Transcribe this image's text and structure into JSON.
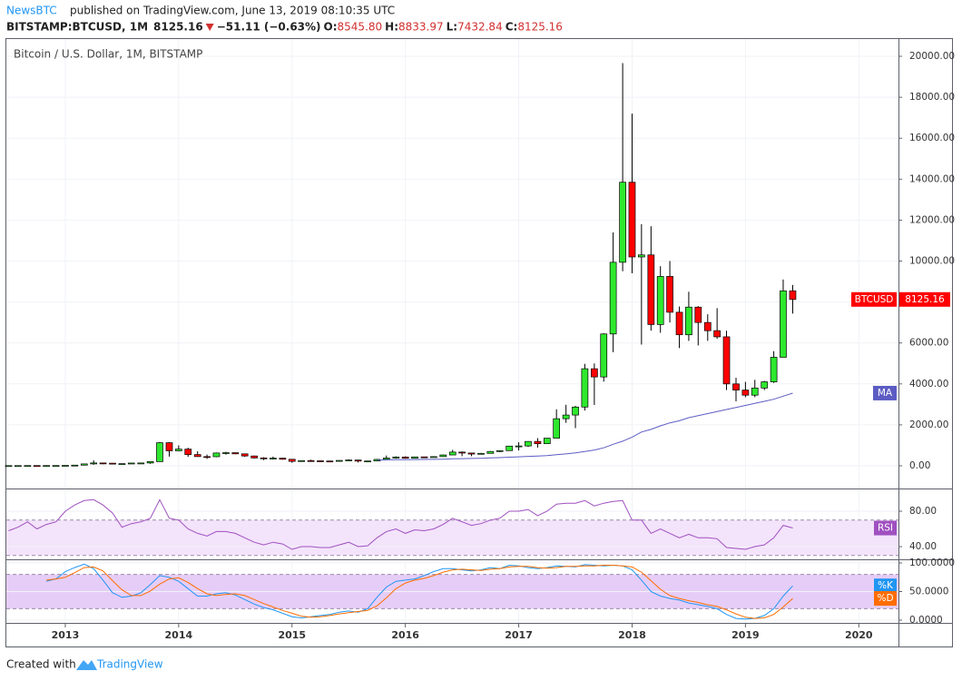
{
  "header": {
    "publisher": "NewsBTC",
    "published": "published on TradingView.com, June 13, 2019 08:10:35 UTC",
    "symbol": "BITSTAMP:BTCUSD, 1M",
    "last": "8125.16",
    "change": "−51.11 (−0.63%)",
    "ohlc": [
      {
        "label": "O:",
        "value": "8545.80"
      },
      {
        "label": "H:",
        "value": "8833.97"
      },
      {
        "label": "L:",
        "value": "7432.84"
      },
      {
        "label": "C:",
        "value": "8125.16"
      }
    ]
  },
  "footer": {
    "created": "Created with",
    "brand": "TradingView"
  },
  "chart_data": [
    {
      "type": "candlestick",
      "title": "Bitcoin / U.S. Dollar, 1M, BITSTAMP",
      "price_label": "BTCUSD",
      "up_color": "#2ee82e",
      "down_color": "#ff0000",
      "grid": true,
      "xlim": [
        2012.48,
        2020.35
      ],
      "xticks": [
        2013,
        2014,
        2015,
        2016,
        2017,
        2018,
        2019,
        2020
      ],
      "ylim": [
        -1064,
        20843
      ],
      "yticks": [
        {
          "value": 0,
          "label": "0.00"
        },
        {
          "value": 2000,
          "label": "2000.00"
        },
        {
          "value": 4000,
          "label": "4000.00"
        },
        {
          "value": 6000,
          "label": "6000.00"
        },
        {
          "value": 8000,
          "label": "8000.00"
        },
        {
          "value": 10000,
          "label": "10000.00"
        },
        {
          "value": 12000,
          "label": "12000.00"
        },
        {
          "value": 14000,
          "label": "14000.00"
        },
        {
          "value": 16000,
          "label": "16000.00"
        },
        {
          "value": 18000,
          "label": "18000.00"
        },
        {
          "value": 20000,
          "label": "20000.00"
        }
      ],
      "x": [
        2012.5,
        2012.583,
        2012.667,
        2012.75,
        2012.833,
        2012.917,
        2013,
        2013.083,
        2013.167,
        2013.25,
        2013.333,
        2013.417,
        2013.5,
        2013.583,
        2013.667,
        2013.75,
        2013.833,
        2013.917,
        2014,
        2014.083,
        2014.167,
        2014.25,
        2014.333,
        2014.417,
        2014.5,
        2014.583,
        2014.667,
        2014.75,
        2014.833,
        2014.917,
        2015,
        2015.083,
        2015.167,
        2015.25,
        2015.333,
        2015.417,
        2015.5,
        2015.583,
        2015.667,
        2015.75,
        2015.833,
        2015.917,
        2016,
        2016.083,
        2016.167,
        2016.25,
        2016.333,
        2016.417,
        2016.5,
        2016.583,
        2016.667,
        2016.75,
        2016.833,
        2016.917,
        2017,
        2017.083,
        2017.167,
        2017.25,
        2017.333,
        2017.417,
        2017.5,
        2017.583,
        2017.667,
        2017.75,
        2017.833,
        2017.917,
        2018,
        2018.083,
        2018.167,
        2018.25,
        2018.333,
        2018.417,
        2018.5,
        2018.583,
        2018.667,
        2018.75,
        2018.833,
        2018.917,
        2019,
        2019.083,
        2019.167,
        2019.25,
        2019.333,
        2019.417
      ],
      "open": [
        6.7,
        9.3,
        10.1,
        12.4,
        11.2,
        12.6,
        13.5,
        20.4,
        33.4,
        93,
        139,
        128,
        97,
        106,
        135,
        138,
        205,
        1128,
        732,
        815,
        550,
        450,
        445,
        625,
        640,
        585,
        480,
        385,
        340,
        375,
        320,
        217,
        255,
        245,
        235,
        230,
        263,
        284,
        230,
        236,
        313,
        378,
        430,
        368,
        436,
        416,
        448,
        530,
        670,
        624,
        575,
        608,
        700,
        742,
        963,
        970,
        1190,
        1080,
        1350,
        2300,
        2480,
        2870,
        4740,
        4340,
        6440,
        9940,
        13850,
        10200,
        10300,
        6900,
        9250,
        7500,
        6400,
        7750,
        7000,
        6600,
        6300,
        4000,
        3700,
        3450,
        3800,
        4100,
        5300,
        8545.8
      ],
      "high": [
        9.6,
        16.4,
        12.8,
        12.9,
        12.9,
        13.9,
        20.8,
        33.4,
        95,
        266,
        140,
        129,
        110,
        136,
        143,
        220,
        1163,
        1160,
        1000,
        880,
        710,
        550,
        650,
        680,
        650,
        600,
        500,
        420,
        450,
        385,
        320,
        265,
        300,
        260,
        250,
        268,
        315,
        285,
        245,
        335,
        502,
        467,
        465,
        445,
        440,
        468,
        550,
        780,
        700,
        625,
        630,
        720,
        755,
        975,
        1150,
        1200,
        1350,
        1350,
        2760,
        2980,
        2930,
        4980,
        5000,
        6470,
        11400,
        19666,
        17200,
        11800,
        11700,
        9750,
        10000,
        7780,
        8500,
        7800,
        7400,
        7700,
        6600,
        4300,
        4100,
        4200,
        4150,
        5600,
        9100,
        8833.97
      ],
      "low": [
        6.5,
        7,
        9.9,
        9.5,
        10.2,
        12.2,
        12.9,
        19.5,
        33,
        50,
        79,
        88,
        65,
        97,
        98,
        95,
        205,
        450,
        720,
        440,
        440,
        340,
        420,
        545,
        565,
        440,
        355,
        280,
        310,
        300,
        152,
        210,
        235,
        210,
        225,
        215,
        255,
        162,
        225,
        236,
        313,
        350,
        350,
        365,
        390,
        412,
        440,
        530,
        470,
        470,
        570,
        605,
        670,
        740,
        750,
        920,
        890,
        1070,
        1350,
        2100,
        1840,
        2700,
        2970,
        4110,
        5550,
        9500,
        9400,
        5920,
        6600,
        6500,
        7000,
        5750,
        6100,
        5880,
        6100,
        6200,
        3700,
        3150,
        3350,
        3350,
        3700,
        4050,
        5300,
        7432.84
      ],
      "close": [
        9.3,
        10.1,
        12.4,
        11.2,
        12.6,
        13.5,
        20.4,
        33.4,
        93,
        139,
        128,
        97,
        106,
        135,
        138,
        205,
        1128,
        732,
        815,
        550,
        450,
        445,
        625,
        640,
        585,
        480,
        385,
        340,
        375,
        320,
        217,
        255,
        245,
        235,
        230,
        263,
        284,
        230,
        236,
        313,
        378,
        430,
        368,
        436,
        416,
        448,
        530,
        670,
        624,
        575,
        608,
        700,
        742,
        963,
        970,
        1190,
        1080,
        1350,
        2300,
        2480,
        2870,
        4740,
        4340,
        6440,
        9940,
        13850,
        10200,
        10300,
        6900,
        9250,
        7500,
        6400,
        7750,
        7000,
        6600,
        6300,
        4000,
        3700,
        3450,
        3800,
        4100,
        5300,
        8545.8,
        8125.16
      ],
      "series": [
        {
          "name": "MA",
          "color": "#5c5cc4",
          "values": [
            null,
            null,
            null,
            null,
            null,
            null,
            null,
            null,
            null,
            null,
            null,
            null,
            null,
            null,
            null,
            null,
            null,
            null,
            null,
            null,
            null,
            null,
            null,
            null,
            null,
            null,
            null,
            null,
            null,
            null,
            null,
            null,
            null,
            null,
            null,
            null,
            null,
            null,
            null,
            280,
            290,
            300,
            300,
            305,
            310,
            315,
            325,
            340,
            350,
            360,
            370,
            385,
            400,
            420,
            440,
            460,
            480,
            500,
            540,
            580,
            630,
            700,
            770,
            880,
            1050,
            1200,
            1400,
            1650,
            1780,
            1950,
            2100,
            2200,
            2350,
            2450,
            2550,
            2650,
            2750,
            2850,
            2950,
            3050,
            3150,
            3250,
            3400,
            3550
          ]
        }
      ]
    },
    {
      "type": "line",
      "ylim": [
        26.7,
        103.6
      ],
      "yticks": [
        {
          "value": 40,
          "label": "40.00"
        },
        {
          "value": 80,
          "label": "80.00"
        }
      ],
      "band": [
        30,
        70
      ],
      "band_color": "#f3e3fb",
      "band_line_color": "#9c8aa8",
      "series": [
        {
          "name": "RSI",
          "color": "#a050c0",
          "values": [
            58,
            62,
            68,
            60,
            65,
            68,
            80,
            87,
            92,
            93,
            87,
            78,
            62,
            66,
            68,
            72,
            93,
            72,
            70,
            60,
            55,
            52,
            57,
            57,
            55,
            50,
            45,
            42,
            45,
            43,
            37,
            40,
            40,
            39,
            39,
            42,
            45,
            40,
            41,
            50,
            57,
            60,
            55,
            59,
            58,
            60,
            65,
            72,
            68,
            64,
            66,
            70,
            72,
            80,
            80,
            82,
            75,
            80,
            88,
            89,
            89,
            92,
            86,
            89,
            91,
            92,
            70,
            70,
            55,
            60,
            55,
            50,
            54,
            50,
            50,
            49,
            39,
            38,
            37,
            40,
            42,
            50,
            64,
            61
          ]
        }
      ]
    },
    {
      "type": "line",
      "ylim": [
        -4.8,
        103.2
      ],
      "yticks": [
        {
          "value": 0,
          "label": "0.0000"
        },
        {
          "value": 50,
          "label": "50.0000"
        },
        {
          "value": 100,
          "label": "100.0000"
        }
      ],
      "band": [
        20,
        80
      ],
      "band_color": "#e6cdf7",
      "band_line_color": "#9c8aa8",
      "series": [
        {
          "name": "%K",
          "color": "#2196f3",
          "values": [
            null,
            null,
            null,
            null,
            68,
            72,
            85,
            92,
            98,
            90,
            70,
            48,
            40,
            42,
            48,
            62,
            78,
            75,
            68,
            55,
            42,
            42,
            46,
            48,
            44,
            36,
            28,
            22,
            18,
            12,
            6,
            4,
            6,
            8,
            10,
            14,
            16,
            14,
            20,
            40,
            58,
            68,
            70,
            72,
            78,
            85,
            90,
            90,
            88,
            86,
            88,
            92,
            90,
            96,
            95,
            92,
            90,
            92,
            95,
            94,
            93,
            97,
            96,
            95,
            96,
            95,
            88,
            70,
            50,
            42,
            38,
            35,
            30,
            27,
            24,
            20,
            10,
            3,
            2,
            3,
            8,
            20,
            42,
            60
          ]
        },
        {
          "name": "%D",
          "color": "#ff6d00",
          "values": [
            null,
            null,
            null,
            null,
            70,
            72,
            75,
            83,
            92,
            93,
            86,
            69,
            53,
            43,
            43,
            51,
            63,
            72,
            74,
            66,
            55,
            46,
            43,
            45,
            46,
            43,
            36,
            29,
            23,
            17,
            12,
            7,
            5,
            6,
            8,
            11,
            13,
            15,
            17,
            25,
            39,
            55,
            65,
            70,
            73,
            78,
            84,
            88,
            89,
            88,
            87,
            89,
            90,
            93,
            94,
            94,
            92,
            91,
            92,
            94,
            94,
            95,
            95,
            96,
            96,
            95,
            93,
            84,
            69,
            54,
            43,
            38,
            34,
            31,
            27,
            24,
            18,
            11,
            5,
            3,
            4,
            10,
            23,
            38
          ]
        }
      ]
    }
  ]
}
